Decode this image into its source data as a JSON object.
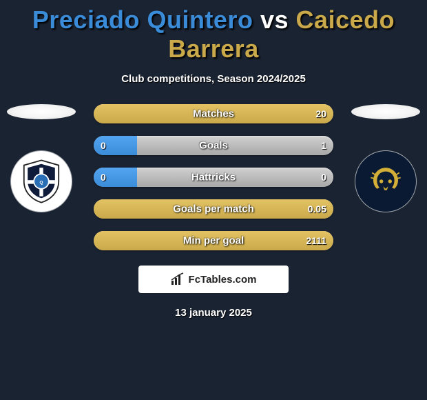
{
  "title": {
    "player1_name": "Preciado Quintero",
    "vs": "vs",
    "player2_name": "Caicedo Barrera",
    "player1_color": "#3a8bd8",
    "player2_color": "#c9a94a"
  },
  "subtitle": "Club competitions, Season 2024/2025",
  "clubs": {
    "left": {
      "name": "queretaro",
      "circle_bg": "#ffffff"
    },
    "right": {
      "name": "pumas",
      "circle_bg": "#0a1a33"
    }
  },
  "bars": [
    {
      "label": "Matches",
      "left_val": "",
      "right_val": "20",
      "left_pct": 0,
      "right_pct": 100,
      "left_color": "#3a8bd8",
      "right_color": "#c9a94a"
    },
    {
      "label": "Goals",
      "left_val": "0",
      "right_val": "1",
      "left_pct": 18,
      "right_pct": 0,
      "left_color": "#3a8bd8",
      "right_color": "#c9a94a"
    },
    {
      "label": "Hattricks",
      "left_val": "0",
      "right_val": "0",
      "left_pct": 18,
      "right_pct": 0,
      "left_color": "#3a8bd8",
      "right_color": "#c9a94a"
    },
    {
      "label": "Goals per match",
      "left_val": "",
      "right_val": "0.05",
      "left_pct": 0,
      "right_pct": 100,
      "left_color": "#3a8bd8",
      "right_color": "#c9a94a"
    },
    {
      "label": "Min per goal",
      "left_val": "",
      "right_val": "2111",
      "left_pct": 0,
      "right_pct": 100,
      "left_color": "#3a8bd8",
      "right_color": "#c9a94a"
    }
  ],
  "brand": "FcTables.com",
  "date": "13 january 2025",
  "background_color": "#1a2332",
  "bar_track_gradient": [
    "#d0d0d0",
    "#a8a8a8"
  ]
}
